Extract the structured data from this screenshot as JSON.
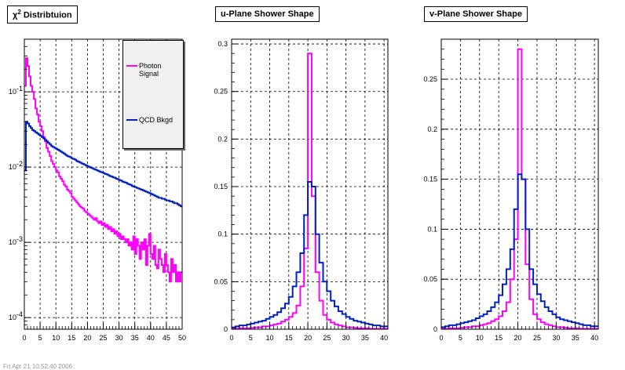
{
  "colors": {
    "signal": "#ff00ff",
    "background": "#0020c0"
  },
  "footer_text": "Fri Apr 21 10:52:40 2006",
  "chart_data": [
    {
      "type": "line",
      "title_prefix": "χ",
      "title_sup": "2",
      "title_suffix": " Distribtuion",
      "xlim": [
        0,
        50
      ],
      "ylim": [
        7e-05,
        0.5
      ],
      "yscale": "log",
      "grid": true,
      "legend": {
        "placement": "top-right",
        "entries": [
          "Photon Signal",
          "QCD Bkgd"
        ]
      },
      "x_ticks": [
        0,
        5,
        10,
        15,
        20,
        25,
        30,
        35,
        40,
        45,
        50
      ],
      "y_ticks": [
        0.0001,
        0.001,
        0.01,
        0.1
      ],
      "y_tick_labels": [
        "10^-4",
        "10^-3",
        "10^-2",
        "10^-1"
      ],
      "bin_width": 0.5,
      "series": [
        {
          "name": "Photon Signal",
          "color": "#ff00ff",
          "values": [
            0.12,
            0.28,
            0.22,
            0.16,
            0.12,
            0.1,
            0.08,
            0.06,
            0.05,
            0.04,
            0.035,
            0.03,
            0.025,
            0.022,
            0.018,
            0.016,
            0.014,
            0.012,
            0.011,
            0.01,
            0.009,
            0.0085,
            0.0075,
            0.007,
            0.0065,
            0.0058,
            0.0055,
            0.005,
            0.0048,
            0.0045,
            0.004,
            0.0038,
            0.0036,
            0.0034,
            0.0032,
            0.003,
            0.0029,
            0.0028,
            0.0026,
            0.0025,
            0.0024,
            0.0023,
            0.0022,
            0.0021,
            0.002,
            0.0021,
            0.0019,
            0.0018,
            0.0019,
            0.0017,
            0.0018,
            0.0016,
            0.0017,
            0.0015,
            0.0016,
            0.0014,
            0.0015,
            0.0013,
            0.0014,
            0.0012,
            0.0013,
            0.0011,
            0.0012,
            0.0011,
            0.001,
            0.0011,
            0.0009,
            0.001,
            0.0008,
            0.0012,
            0.0007,
            0.0011,
            0.0009,
            0.0006,
            0.001,
            0.0008,
            0.0011,
            0.0005,
            0.0009,
            0.0013,
            0.0007,
            0.0006,
            0.0009,
            0.0005,
            0.00045,
            0.0008,
            0.0006,
            0.0005,
            0.0004,
            0.0007,
            0.0005,
            0.0004,
            0.0003,
            0.0006,
            0.0004,
            0.0005,
            0.0003,
            0.0004,
            0.0003,
            0.0004
          ]
        },
        {
          "name": "QCD Bkgd",
          "color": "#0020c0",
          "values": [
            0.009,
            0.04,
            0.038,
            0.035,
            0.033,
            0.031,
            0.03,
            0.029,
            0.028,
            0.027,
            0.026,
            0.025,
            0.024,
            0.023,
            0.022,
            0.021,
            0.02,
            0.019,
            0.0185,
            0.018,
            0.0175,
            0.017,
            0.0165,
            0.016,
            0.0155,
            0.015,
            0.0145,
            0.014,
            0.0138,
            0.0135,
            0.013,
            0.0128,
            0.0125,
            0.012,
            0.0118,
            0.0115,
            0.0112,
            0.011,
            0.0107,
            0.0105,
            0.0102,
            0.01,
            0.0098,
            0.0096,
            0.0094,
            0.0092,
            0.009,
            0.0088,
            0.0086,
            0.0085,
            0.0083,
            0.0081,
            0.008,
            0.0078,
            0.0076,
            0.0075,
            0.0073,
            0.0072,
            0.007,
            0.0069,
            0.0067,
            0.0066,
            0.0064,
            0.0063,
            0.0062,
            0.006,
            0.0059,
            0.0058,
            0.0056,
            0.0055,
            0.0054,
            0.0053,
            0.0052,
            0.0051,
            0.005,
            0.0049,
            0.0048,
            0.0047,
            0.0046,
            0.0045,
            0.0044,
            0.0043,
            0.0042,
            0.0041,
            0.004,
            0.0039,
            0.0039,
            0.0038,
            0.0038,
            0.0037,
            0.0036,
            0.0036,
            0.0035,
            0.0035,
            0.0034,
            0.0033,
            0.0033,
            0.0032,
            0.0031,
            0.003
          ]
        }
      ]
    },
    {
      "type": "line",
      "title": "u-Plane Shower Shape",
      "xlim": [
        0,
        41
      ],
      "ylim": [
        0,
        0.305
      ],
      "grid": true,
      "x_ticks": [
        0,
        5,
        10,
        15,
        20,
        25,
        30,
        35,
        40
      ],
      "y_ticks": [
        0,
        0.05,
        0.1,
        0.15,
        0.2,
        0.25,
        0.3
      ],
      "y_tick_labels": [
        "0",
        "0.05",
        "0.1",
        "0.15",
        "0.2",
        "0.25",
        "0.3"
      ],
      "bin_width": 1,
      "series": [
        {
          "name": "Photon Signal",
          "color": "#ff00ff",
          "values": [
            0.0005,
            0.0005,
            0.001,
            0.001,
            0.001,
            0.0015,
            0.002,
            0.002,
            0.003,
            0.003,
            0.004,
            0.005,
            0.006,
            0.008,
            0.01,
            0.013,
            0.017,
            0.025,
            0.045,
            0.085,
            0.29,
            0.14,
            0.06,
            0.03,
            0.015,
            0.01,
            0.007,
            0.005,
            0.004,
            0.003,
            0.002,
            0.002,
            0.0015,
            0.001,
            0.001,
            0.001,
            0.0005,
            0.0005,
            0.0005,
            0.0005,
            0.0005
          ]
        },
        {
          "name": "QCD Bkgd",
          "color": "#0020c0",
          "values": [
            0.002,
            0.003,
            0.004,
            0.004,
            0.005,
            0.006,
            0.007,
            0.008,
            0.009,
            0.011,
            0.013,
            0.015,
            0.018,
            0.022,
            0.027,
            0.034,
            0.045,
            0.06,
            0.08,
            0.12,
            0.155,
            0.15,
            0.1,
            0.07,
            0.05,
            0.04,
            0.03,
            0.024,
            0.019,
            0.016,
            0.013,
            0.011,
            0.009,
            0.008,
            0.007,
            0.006,
            0.005,
            0.004,
            0.004,
            0.003,
            0.003
          ]
        }
      ]
    },
    {
      "type": "line",
      "title": "v-Plane Shower Shape",
      "xlim": [
        0,
        41
      ],
      "ylim": [
        0,
        0.29
      ],
      "grid": true,
      "x_ticks": [
        0,
        5,
        10,
        15,
        20,
        25,
        30,
        35,
        40
      ],
      "y_ticks": [
        0,
        0.05,
        0.1,
        0.15,
        0.2,
        0.25
      ],
      "y_tick_labels": [
        "0",
        "0.05",
        "0.1",
        "0.15",
        "0.2",
        "0.25"
      ],
      "bin_width": 1,
      "series": [
        {
          "name": "Photon Signal",
          "color": "#ff00ff",
          "values": [
            0.0005,
            0.0005,
            0.001,
            0.001,
            0.001,
            0.0015,
            0.002,
            0.002,
            0.003,
            0.003,
            0.004,
            0.005,
            0.006,
            0.008,
            0.01,
            0.013,
            0.018,
            0.027,
            0.05,
            0.09,
            0.28,
            0.15,
            0.065,
            0.03,
            0.015,
            0.01,
            0.007,
            0.005,
            0.004,
            0.003,
            0.002,
            0.002,
            0.0015,
            0.001,
            0.001,
            0.001,
            0.0005,
            0.0005,
            0.0005,
            0.0005,
            0.0005
          ]
        },
        {
          "name": "QCD Bkgd",
          "color": "#0020c0",
          "values": [
            0.002,
            0.003,
            0.004,
            0.004,
            0.005,
            0.006,
            0.007,
            0.008,
            0.009,
            0.011,
            0.013,
            0.015,
            0.018,
            0.022,
            0.027,
            0.034,
            0.045,
            0.06,
            0.08,
            0.12,
            0.155,
            0.15,
            0.1,
            0.06,
            0.045,
            0.035,
            0.028,
            0.022,
            0.018,
            0.015,
            0.012,
            0.01,
            0.009,
            0.008,
            0.007,
            0.006,
            0.005,
            0.004,
            0.004,
            0.003,
            0.003
          ]
        }
      ]
    }
  ]
}
